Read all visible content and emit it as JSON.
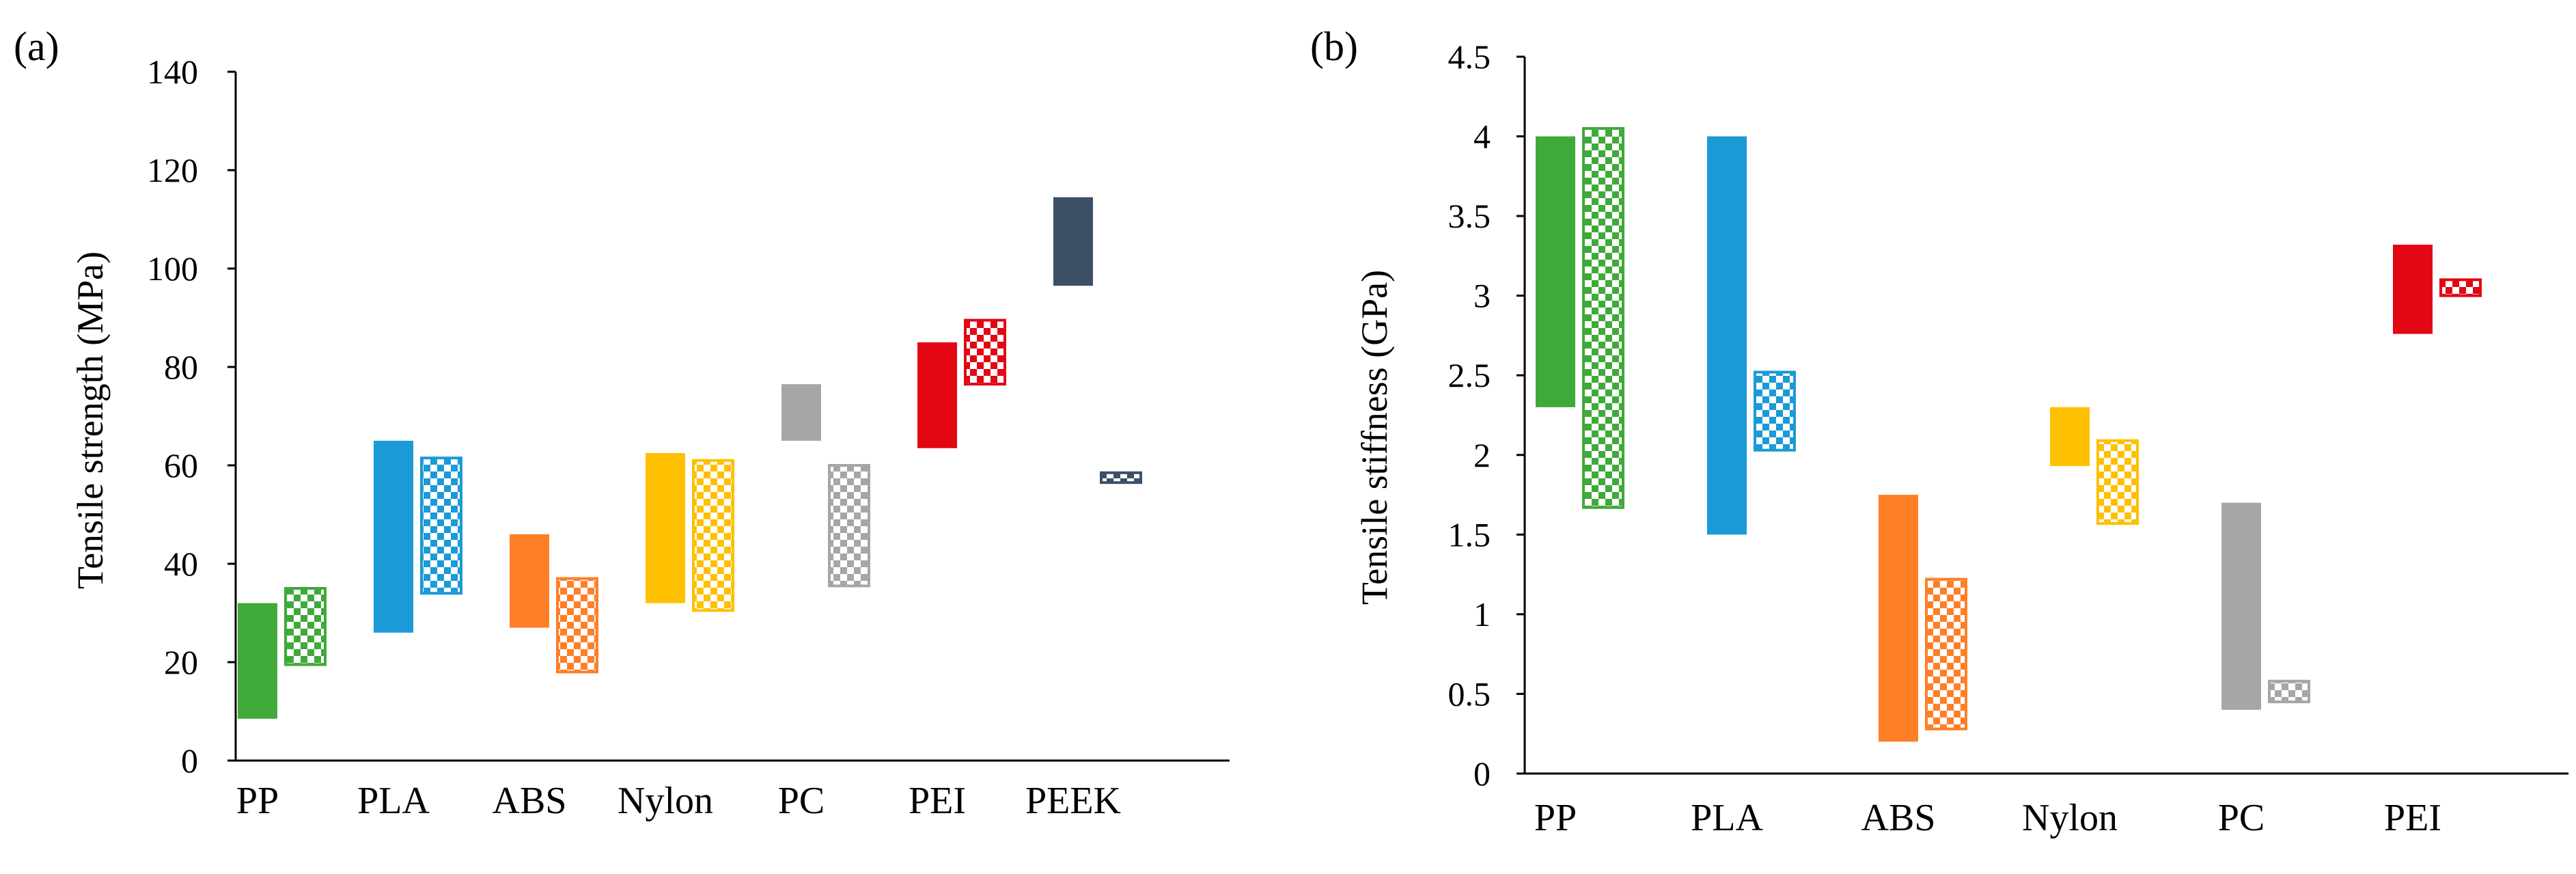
{
  "chart_data": [
    {
      "type": "range-bar",
      "panel_label": "(a)",
      "ylabel": "Tensile  strength (MPa)",
      "ylim": [
        0,
        140
      ],
      "yticks": [
        0,
        20,
        40,
        60,
        80,
        100,
        120,
        140
      ],
      "categories": [
        "PP",
        "PLA",
        "ABS",
        "Nylon",
        "PC",
        "PEI",
        "PEEK"
      ],
      "colors": [
        "#3faa3a",
        "#1a9ad6",
        "#ff7f27",
        "#ffc000",
        "#a6a6a6",
        "#e30613",
        "#3d5068"
      ],
      "series": [
        {
          "pattern": "solid",
          "ranges": [
            [
              8.5,
              32
            ],
            [
              26,
              65
            ],
            [
              27,
              46
            ],
            [
              32,
              62.5
            ],
            [
              65,
              76.5
            ],
            [
              63.5,
              85
            ],
            [
              96.5,
              114.5
            ]
          ]
        },
        {
          "pattern": "checkered",
          "ranges": [
            [
              19.5,
              35
            ],
            [
              34,
              61.5
            ],
            [
              18,
              37
            ],
            [
              30.5,
              61
            ],
            [
              35.5,
              60
            ],
            [
              76.5,
              89.5
            ],
            [
              56.5,
              58.5
            ]
          ]
        }
      ]
    },
    {
      "type": "range-bar",
      "panel_label": "(b)",
      "ylabel": "Tensile stiffness (GPa)",
      "ylim": [
        0,
        4.5
      ],
      "yticks": [
        0,
        0.5,
        1,
        1.5,
        2,
        2.5,
        3,
        3.5,
        4,
        4.5
      ],
      "ytick_labels": [
        "0",
        "0.5",
        "1",
        "1.5",
        "2",
        "2.5",
        "3",
        "3.5",
        "4",
        "4.5"
      ],
      "categories": [
        "PP",
        "PLA",
        "ABS",
        "Nylon",
        "PC",
        "PEI"
      ],
      "colors": [
        "#3faa3a",
        "#1a9ad6",
        "#ff7f27",
        "#ffc000",
        "#a6a6a6",
        "#e30613"
      ],
      "series": [
        {
          "pattern": "solid",
          "ranges": [
            [
              2.3,
              4.0
            ],
            [
              1.5,
              4.0
            ],
            [
              0.2,
              1.75
            ],
            [
              1.93,
              2.3
            ],
            [
              0.4,
              1.7
            ],
            [
              2.76,
              3.32
            ]
          ]
        },
        {
          "pattern": "checkered",
          "ranges": [
            [
              1.67,
              4.05
            ],
            [
              2.03,
              2.52
            ],
            [
              0.28,
              1.22
            ],
            [
              1.57,
              2.09
            ],
            [
              0.45,
              0.58
            ],
            [
              3.0,
              3.1
            ]
          ]
        }
      ]
    }
  ]
}
